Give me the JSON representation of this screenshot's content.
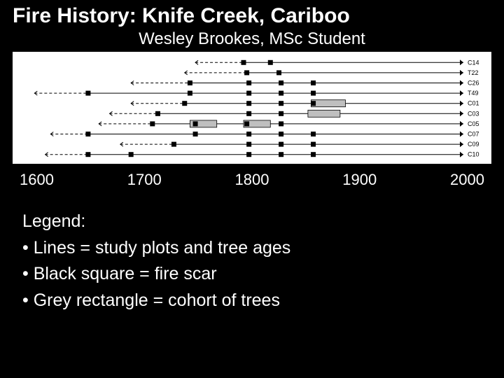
{
  "title": "Fire History: Knife Creek, Cariboo",
  "subtitle": "Wesley Brookes, MSc Student",
  "axis_ticks": [
    "1600",
    "1700",
    "1800",
    "1900",
    "2000"
  ],
  "legend": {
    "heading": "Legend:",
    "items": [
      "Lines = study plots and tree ages",
      "Black square = fire scar",
      "Grey rectangle = cohort of trees"
    ]
  },
  "chart": {
    "type": "timeline",
    "x_range": [
      1600,
      2010
    ],
    "plot_bg": "#ffffff",
    "line_color": "#000000",
    "line_width": 1,
    "scar_fill": "#000000",
    "scar_size": 7,
    "cohort_fill": "#bfbfbf",
    "cohort_stroke": "#000000",
    "cohort_h": 10,
    "label_fontsize": 9,
    "label_color": "#000000",
    "arrow_size": 5,
    "series": [
      {
        "label": "C14",
        "dashed_start": 1760,
        "solid_start": 1805,
        "end": 2010,
        "scars": [
          1805,
          1830
        ],
        "cohorts": []
      },
      {
        "label": "T22",
        "dashed_start": 1750,
        "solid_start": 1808,
        "end": 2010,
        "scars": [
          1808,
          1838
        ],
        "cohorts": []
      },
      {
        "label": "C26",
        "dashed_start": 1700,
        "solid_start": 1755,
        "end": 2010,
        "scars": [
          1755,
          1810,
          1840,
          1870
        ],
        "cohorts": []
      },
      {
        "label": "T49",
        "dashed_start": 1610,
        "solid_start": 1660,
        "end": 2010,
        "scars": [
          1660,
          1755,
          1810,
          1840,
          1870
        ],
        "cohorts": []
      },
      {
        "label": "C01",
        "dashed_start": 1700,
        "solid_start": 1750,
        "end": 2010,
        "scars": [
          1750,
          1810,
          1840,
          1870
        ],
        "cohorts": [
          [
            1868,
            1900
          ]
        ]
      },
      {
        "label": "C03",
        "dashed_start": 1680,
        "solid_start": 1725,
        "end": 2010,
        "scars": [
          1725,
          1810,
          1840
        ],
        "cohorts": [
          [
            1865,
            1895
          ]
        ]
      },
      {
        "label": "C05",
        "dashed_start": 1670,
        "solid_start": 1720,
        "end": 2010,
        "scars": [
          1720,
          1760,
          1808,
          1840
        ],
        "cohorts": [
          [
            1755,
            1780
          ],
          [
            1805,
            1830
          ]
        ]
      },
      {
        "label": "C07",
        "dashed_start": 1625,
        "solid_start": 1660,
        "end": 2010,
        "scars": [
          1660,
          1760,
          1810,
          1840,
          1870
        ],
        "cohorts": []
      },
      {
        "label": "C09",
        "dashed_start": 1690,
        "solid_start": 1740,
        "end": 2010,
        "scars": [
          1740,
          1810,
          1840,
          1870
        ],
        "cohorts": []
      },
      {
        "label": "C10",
        "dashed_start": 1620,
        "solid_start": 1660,
        "end": 2010,
        "scars": [
          1660,
          1700,
          1810,
          1840,
          1870
        ],
        "cohorts": []
      }
    ]
  }
}
